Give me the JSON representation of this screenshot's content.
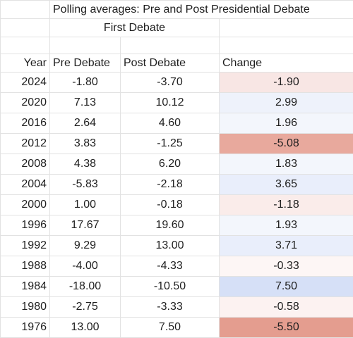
{
  "title": "Polling averages: Pre and Post Presidential Debate",
  "subtitle": "First Debate",
  "columns": {
    "year": "Year",
    "pre": "Pre Debate",
    "post": "Post Debate",
    "change": "Change"
  },
  "rows": [
    {
      "year": "2024",
      "pre": "-1.80",
      "post": "-3.70",
      "change": "-1.90",
      "change_color": "#f8e6e4"
    },
    {
      "year": "2020",
      "pre": "7.13",
      "post": "10.12",
      "change": "2.99",
      "change_color": "#eef2fb"
    },
    {
      "year": "2016",
      "pre": "2.64",
      "post": "4.60",
      "change": "1.96",
      "change_color": "#f3f6fc"
    },
    {
      "year": "2012",
      "pre": "3.83",
      "post": "-1.25",
      "change": "-5.08",
      "change_color": "#e8a99d"
    },
    {
      "year": "2008",
      "pre": "4.38",
      "post": "6.20",
      "change": "1.83",
      "change_color": "#f3f6fc"
    },
    {
      "year": "2004",
      "pre": "-5.83",
      "post": "-2.18",
      "change": "3.65",
      "change_color": "#e9eefb"
    },
    {
      "year": "2000",
      "pre": "1.00",
      "post": "-0.18",
      "change": "-1.18",
      "change_color": "#faecea"
    },
    {
      "year": "1996",
      "pre": "17.67",
      "post": "19.60",
      "change": "1.93",
      "change_color": "#f3f6fc"
    },
    {
      "year": "1992",
      "pre": "9.29",
      "post": "13.00",
      "change": "3.71",
      "change_color": "#e9eefb"
    },
    {
      "year": "1988",
      "pre": "-4.00",
      "post": "-4.33",
      "change": "-0.33",
      "change_color": "#fdf6f5"
    },
    {
      "year": "1984",
      "pre": "-18.00",
      "post": "-10.50",
      "change": "7.50",
      "change_color": "#d6e0f7"
    },
    {
      "year": "1980",
      "pre": "-2.75",
      "post": "-3.33",
      "change": "-0.58",
      "change_color": "#fcf2f1"
    },
    {
      "year": "1976",
      "pre": "13.00",
      "post": "7.50",
      "change": "-5.50",
      "change_color": "#e49d8f"
    }
  ]
}
